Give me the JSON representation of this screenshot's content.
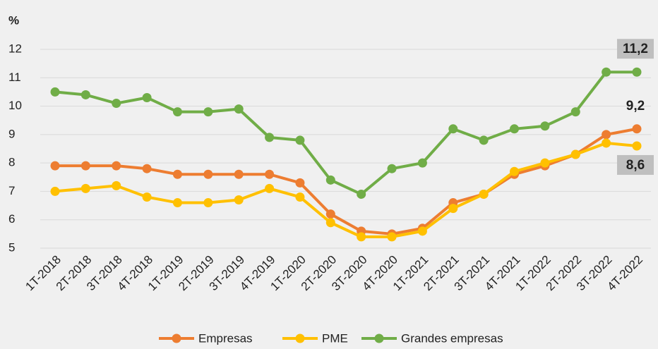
{
  "chart_data": {
    "type": "line",
    "ylabel": "%",
    "categories": [
      "1T-2018",
      "2T-2018",
      "3T-2018",
      "4T-2018",
      "1T-2019",
      "2T-2019",
      "3T-2019",
      "4T-2019",
      "1T-2020",
      "2T-2020",
      "3T-2020",
      "4T-2020",
      "1T-2021",
      "2T-2021",
      "3T-2021",
      "4T-2021",
      "1T-2022",
      "2T-2022",
      "3T-2022",
      "4T-2022"
    ],
    "series": [
      {
        "name": "Empresas",
        "color": "#ed7d31",
        "values": [
          7.9,
          7.9,
          7.9,
          7.8,
          7.6,
          7.6,
          7.6,
          7.6,
          7.3,
          6.2,
          5.6,
          5.5,
          5.7,
          6.6,
          6.9,
          7.6,
          7.9,
          8.3,
          9.0,
          9.2
        ],
        "value_labels": [
          null,
          null,
          null,
          null,
          null,
          null,
          null,
          null,
          null,
          null,
          null,
          null,
          null,
          null,
          null,
          null,
          null,
          null,
          null,
          "9,2"
        ]
      },
      {
        "name": "PME",
        "color": "#ffc000",
        "values": [
          7.0,
          7.1,
          7.2,
          6.8,
          6.6,
          6.6,
          6.7,
          7.1,
          6.8,
          5.9,
          5.4,
          5.4,
          5.6,
          6.4,
          6.9,
          7.7,
          8.0,
          8.3,
          8.7,
          8.6
        ],
        "value_labels": [
          null,
          null,
          null,
          null,
          null,
          null,
          null,
          null,
          null,
          null,
          null,
          null,
          null,
          null,
          null,
          null,
          null,
          null,
          null,
          "8,6"
        ]
      },
      {
        "name": "Grandes empresas",
        "color": "#70ad47",
        "values": [
          10.5,
          10.4,
          10.1,
          10.3,
          9.8,
          9.8,
          9.9,
          8.9,
          8.8,
          7.4,
          6.9,
          7.8,
          8.0,
          9.2,
          8.8,
          9.2,
          9.3,
          9.8,
          11.2,
          11.2
        ],
        "value_labels": [
          null,
          null,
          null,
          null,
          null,
          null,
          null,
          null,
          null,
          null,
          null,
          null,
          null,
          null,
          null,
          null,
          null,
          null,
          null,
          "11,2"
        ]
      }
    ],
    "ylim": [
      5,
      12
    ],
    "yticks": [
      5,
      6,
      7,
      8,
      9,
      10,
      11,
      12
    ],
    "grid": true,
    "legend": "bottom"
  }
}
